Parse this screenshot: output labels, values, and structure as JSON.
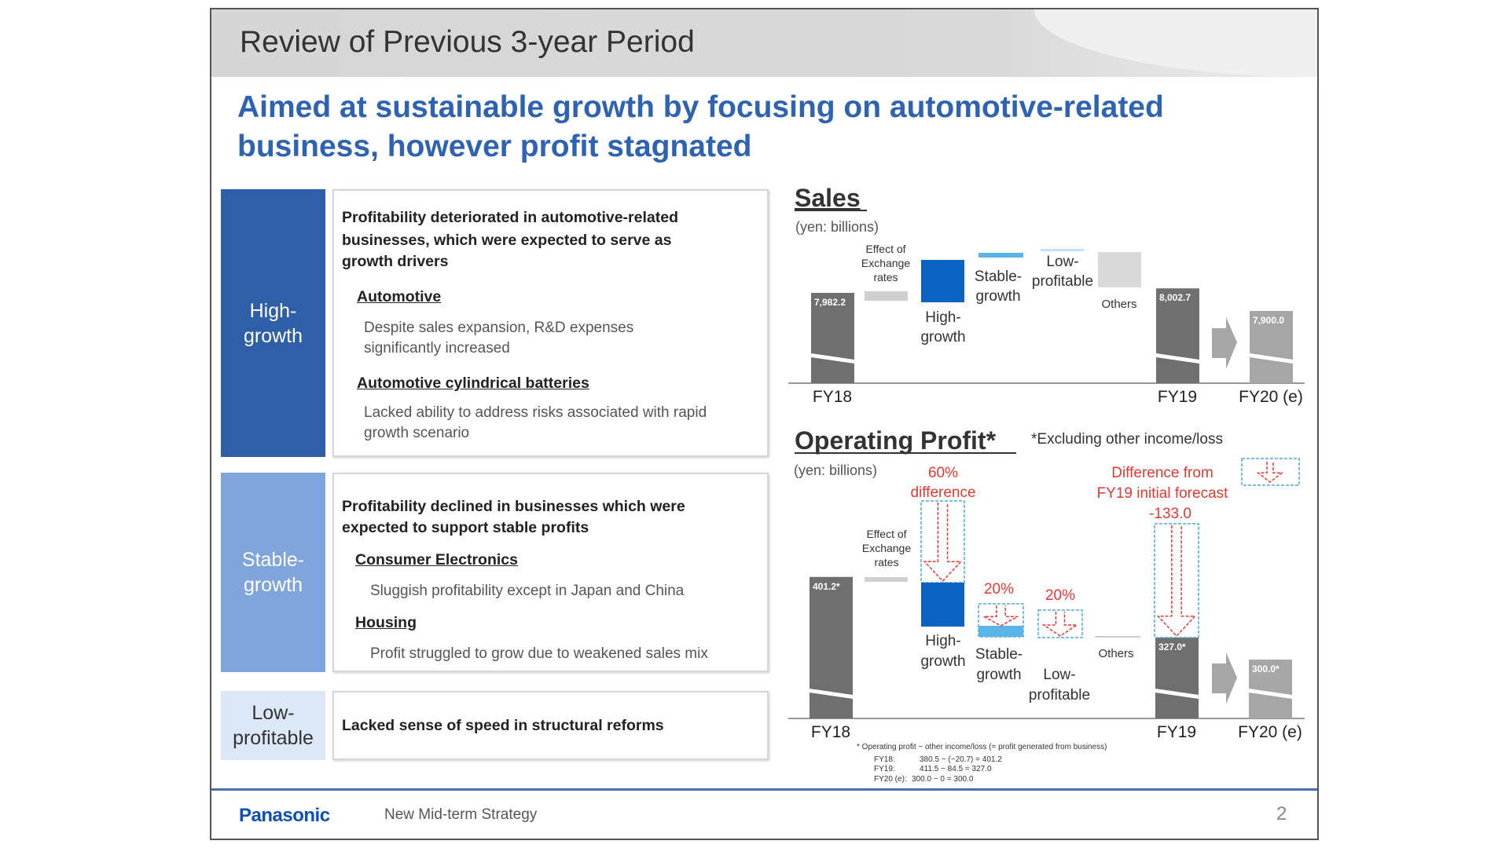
{
  "header": {
    "title": "Review of Previous 3-year Period"
  },
  "subtitle": [
    "Aimed at sustainable growth by focusing on automotive-related",
    "business, however profit stagnated"
  ],
  "segments": [
    {
      "label": [
        "High-",
        "growth"
      ],
      "color": "#2e5fa8",
      "text_color": "#ffffff",
      "headline": [
        "Profitability deteriorated in automotive-related",
        "businesses, which were expected to serve as",
        "growth drivers"
      ],
      "items": [
        {
          "title": "Automotive",
          "body": [
            "Despite sales expansion, R&D expenses",
            "significantly increased"
          ]
        },
        {
          "title": "Automotive cylindrical batteries",
          "body": [
            "Lacked ability to address risks associated with rapid",
            "growth scenario"
          ]
        }
      ]
    },
    {
      "label": [
        "Stable-",
        "growth"
      ],
      "color": "#7fa5dc",
      "text_color": "#ffffff",
      "headline": [
        "Profitability declined in businesses which were",
        "expected to support stable profits"
      ],
      "items": [
        {
          "title": "Consumer Electronics",
          "body": [
            "Sluggish profitability except in Japan and China"
          ]
        },
        {
          "title": "Housing",
          "body": [
            "Profit struggled to grow due to weakened sales mix"
          ]
        }
      ]
    },
    {
      "label": [
        "Low-",
        "profitable"
      ],
      "color": "#dce8f7",
      "text_color": "#333333",
      "headline": [
        "Lacked sense of speed in structural reforms"
      ],
      "items": []
    }
  ],
  "footer": {
    "brand": "Panasonic",
    "doc": "New Mid-term Strategy",
    "page": "2"
  },
  "chart_data": [
    {
      "type": "waterfall",
      "title": "Sales",
      "unit": "(yen: billions)",
      "categories": [
        "FY18",
        "Effect of Exchange rates",
        "High-growth",
        "Stable-growth",
        "Low-profitable",
        "Others",
        "FY19",
        "FY20 (e)"
      ],
      "totals": [
        {
          "category": "FY18",
          "value": 7982.2,
          "label": "7,982.2"
        },
        {
          "category": "FY19",
          "value": 8002.7,
          "label": "8,002.7"
        },
        {
          "category": "FY20 (e)",
          "value": 7900.0,
          "label": "7,900.0"
        }
      ],
      "axis_break": true
    },
    {
      "type": "waterfall",
      "title": "Operating Profit*",
      "note": "*Excluding other income/loss",
      "unit": "(yen: billions)",
      "categories": [
        "FY18",
        "Effect of Exchange rates",
        "High-growth",
        "Stable-growth",
        "Low-profitable",
        "Others",
        "FY19",
        "FY20 (e)"
      ],
      "totals": [
        {
          "category": "FY18",
          "value": 401.2,
          "label": "401.2*"
        },
        {
          "category": "FY19",
          "value": 327.0,
          "label": "327.0*"
        },
        {
          "category": "FY20 (e)",
          "value": 300.0,
          "label": "300.0*"
        }
      ],
      "annotations": {
        "high": [
          "60%",
          "difference"
        ],
        "stable": "20%",
        "low": "20%",
        "fy19": [
          "Difference from",
          "FY19 initial forecast",
          "-133.0"
        ]
      },
      "footnote": [
        "* Operating profit − other income/loss (= profit generated from business)",
        "FY18:",
        "380.5 − (−20.7) = 401.2",
        "FY19:",
        "411.5 − 84.5 = 327.0",
        "FY20 (e):",
        "300.0 − 0 = 300.0"
      ],
      "axis_break": true
    }
  ],
  "colors": {
    "title_blue": "#2e63b3",
    "bar_gray": "#6f6f6f",
    "forecast_gray": "#a6a6a6",
    "high_blue": "#0b63c4",
    "stable_blue": "#5bb4e8",
    "red": "#e8382f"
  }
}
